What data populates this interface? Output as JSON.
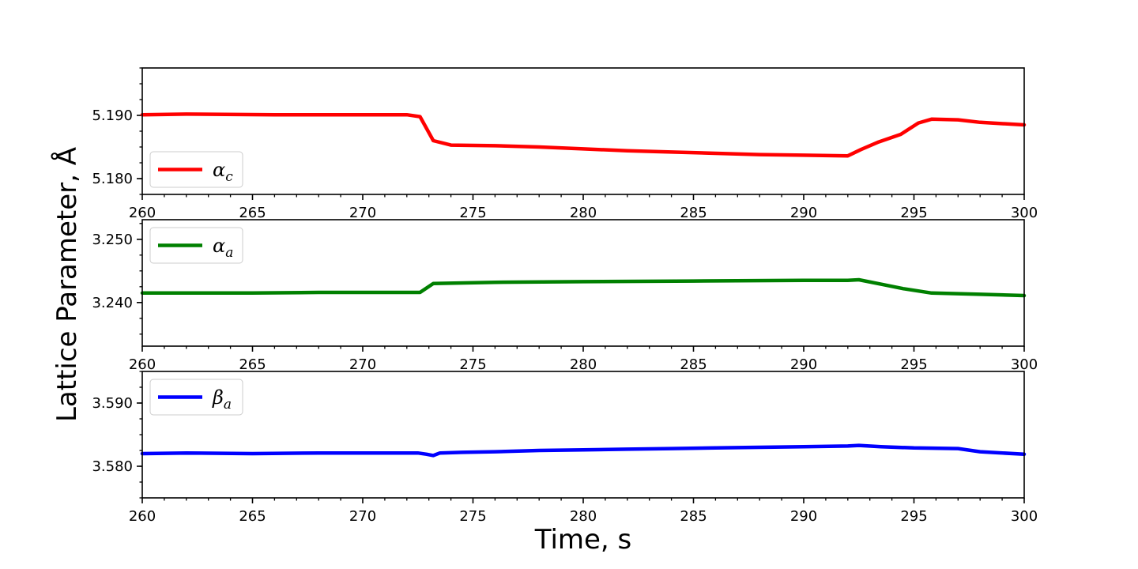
{
  "figure": {
    "ylabel": "Lattice Parameter, Å",
    "xlabel": "Time, s"
  },
  "chart_data": [
    {
      "type": "line",
      "panel": "top",
      "xlim": [
        260,
        300
      ],
      "ylim": [
        5.1775,
        5.1975
      ],
      "x_ticks": [
        260,
        265,
        270,
        275,
        280,
        285,
        290,
        295,
        300
      ],
      "x_tick_labels": [
        "260",
        "265",
        "270",
        "275",
        "280",
        "285",
        "290",
        "295",
        "300"
      ],
      "y_ticks": [
        5.18,
        5.19
      ],
      "y_tick_labels": [
        "5.180",
        "5.190"
      ],
      "legend_position": "lower-left",
      "series": [
        {
          "name": "α_c",
          "legend_base": "α",
          "legend_sub": "c",
          "color": "#ff0000",
          "x": [
            260,
            262,
            266,
            270,
            272,
            272.6,
            273.2,
            274,
            276,
            278,
            280,
            282,
            284,
            286,
            288,
            290,
            292,
            292.6,
            293.4,
            294.4,
            295.2,
            295.8,
            297,
            298,
            300
          ],
          "y": [
            5.1901,
            5.1902,
            5.1901,
            5.1901,
            5.1901,
            5.1898,
            5.186,
            5.1853,
            5.1852,
            5.185,
            5.1847,
            5.1844,
            5.1842,
            5.184,
            5.1838,
            5.1837,
            5.1836,
            5.1846,
            5.1858,
            5.187,
            5.1888,
            5.1894,
            5.1893,
            5.1889,
            5.1885
          ]
        }
      ]
    },
    {
      "type": "line",
      "panel": "middle",
      "xlim": [
        260,
        300
      ],
      "ylim": [
        3.2331,
        3.2531
      ],
      "x_ticks": [
        260,
        265,
        270,
        275,
        280,
        285,
        290,
        295,
        300
      ],
      "x_tick_labels": [
        "260",
        "265",
        "270",
        "275",
        "280",
        "285",
        "290",
        "295",
        "300"
      ],
      "y_ticks": [
        3.24,
        3.25
      ],
      "y_tick_labels": [
        "3.240",
        "3.250"
      ],
      "legend_position": "upper-left",
      "series": [
        {
          "name": "α_a",
          "legend_base": "α",
          "legend_sub": "a",
          "color": "#008000",
          "x": [
            260,
            265,
            268,
            272.6,
            273.2,
            276,
            280,
            285,
            290,
            292,
            292.5,
            293.5,
            294.5,
            295.8,
            298,
            300
          ],
          "y": [
            3.2415,
            3.2415,
            3.2416,
            3.2416,
            3.243,
            3.2432,
            3.2433,
            3.2434,
            3.2435,
            3.2435,
            3.2436,
            3.2429,
            3.2422,
            3.2415,
            3.2413,
            3.2411
          ]
        }
      ]
    },
    {
      "type": "line",
      "panel": "bottom",
      "xlim": [
        260,
        300
      ],
      "ylim": [
        3.575,
        3.595
      ],
      "x_ticks": [
        260,
        265,
        270,
        275,
        280,
        285,
        290,
        295,
        300
      ],
      "x_tick_labels": [
        "260",
        "265",
        "270",
        "275",
        "280",
        "285",
        "290",
        "295",
        "300"
      ],
      "y_ticks": [
        3.58,
        3.59
      ],
      "y_tick_labels": [
        "3.580",
        "3.590"
      ],
      "legend_position": "upper-left",
      "series": [
        {
          "name": "β_a",
          "legend_base": "β",
          "legend_sub": "a",
          "color": "#0000ff",
          "x": [
            260,
            262,
            265,
            268,
            270,
            272.5,
            272.9,
            273.2,
            273.5,
            274.5,
            276,
            278,
            280,
            282,
            284,
            286,
            288,
            290,
            292,
            292.5,
            293.5,
            295,
            297,
            298,
            300
          ],
          "y": [
            3.582,
            3.5821,
            3.582,
            3.5821,
            3.5821,
            3.5821,
            3.5819,
            3.5817,
            3.5821,
            3.5822,
            3.5823,
            3.5825,
            3.5826,
            3.5827,
            3.5828,
            3.5829,
            3.583,
            3.5831,
            3.5832,
            3.5833,
            3.5831,
            3.5829,
            3.5828,
            3.5823,
            3.5819
          ]
        }
      ]
    }
  ]
}
